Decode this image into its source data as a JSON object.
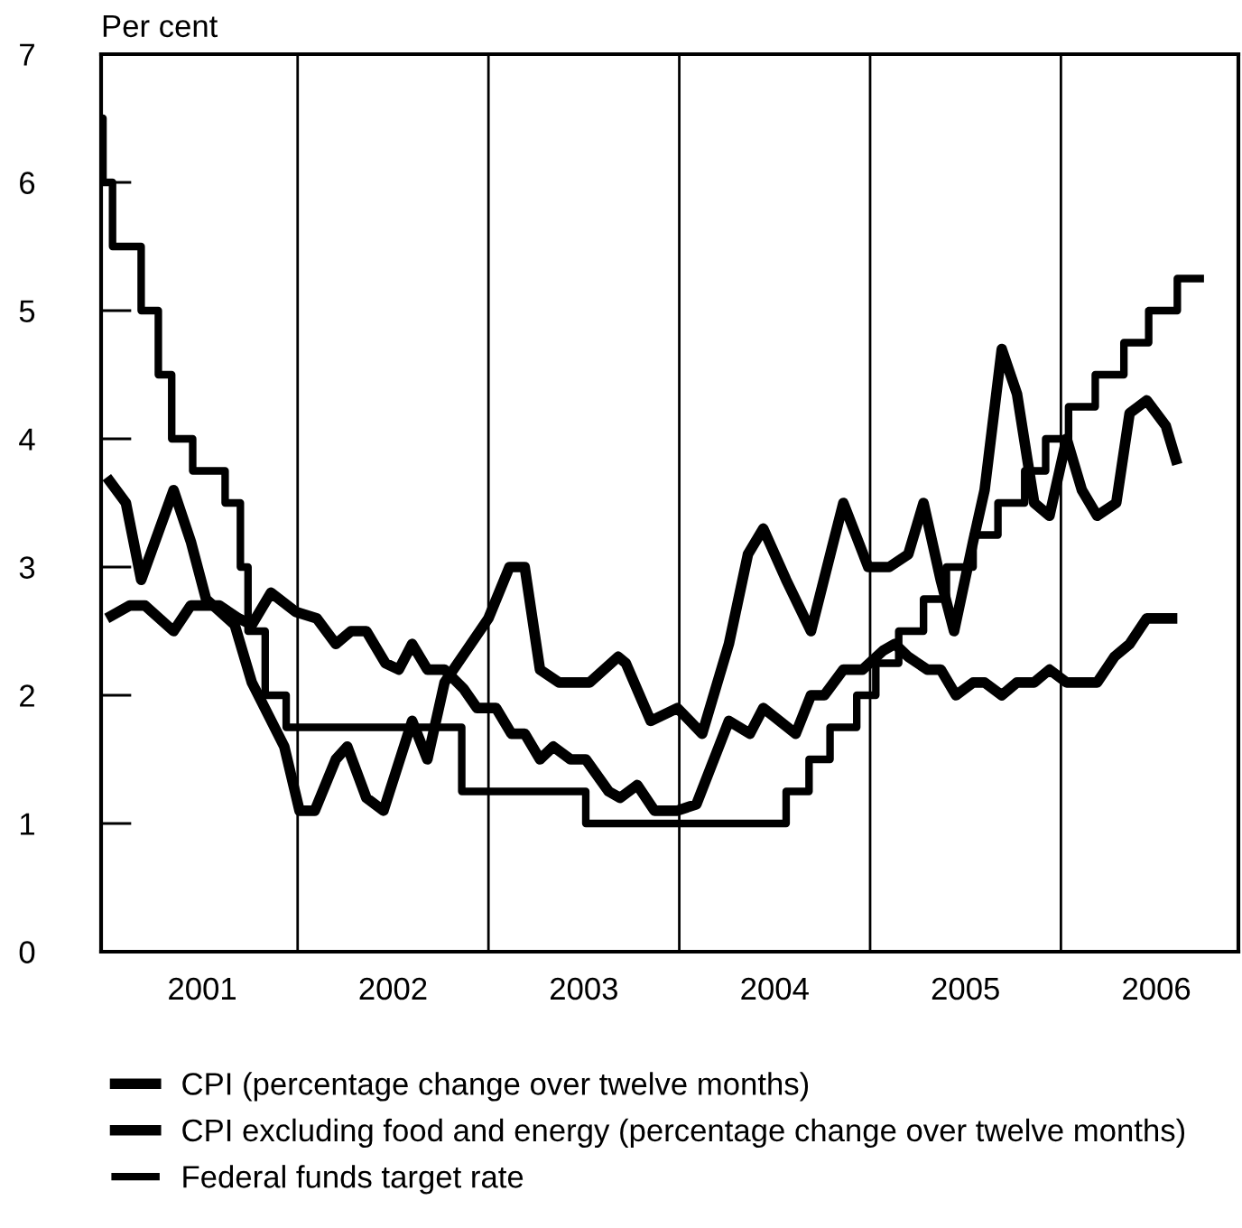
{
  "chart_data": {
    "type": "line",
    "ylabel": "Per cent",
    "xlim": [
      2000.97,
      2006.93
    ],
    "xticks": [
      {
        "value": 2001.5,
        "label": "2001"
      },
      {
        "value": 2002.5,
        "label": "2002"
      },
      {
        "value": 2003.5,
        "label": "2003"
      },
      {
        "value": 2004.5,
        "label": "2004"
      },
      {
        "value": 2005.5,
        "label": "2005"
      },
      {
        "value": 2006.5,
        "label": "2006"
      }
    ],
    "ylim": [
      0,
      7
    ],
    "yticks": [
      0,
      1,
      2,
      3,
      4,
      5,
      6,
      7
    ],
    "ref_lines": [
      {
        "axis": "x",
        "value": 2002,
        "color": "#000000"
      },
      {
        "axis": "x",
        "value": 2003,
        "color": "#000000"
      },
      {
        "axis": "x",
        "value": 2004,
        "color": "#000000"
      },
      {
        "axis": "x",
        "value": 2005,
        "color": "#000000"
      },
      {
        "axis": "x",
        "value": 2006,
        "color": "#000000"
      }
    ],
    "legend": "bottom left",
    "grid": false,
    "line_style": "solid",
    "series": [
      {
        "name": "CPI (percentage change over twelve months)",
        "color": "#000000",
        "x": [
          2001.0,
          2001.1,
          2001.18,
          2001.35,
          2001.44,
          2001.52,
          2001.67,
          2001.76,
          2001.93,
          2002.01,
          2002.09,
          2002.2,
          2002.26,
          2002.36,
          2002.45,
          2002.6,
          2002.68,
          2002.77,
          2003.0,
          2003.11,
          2003.19,
          2003.27,
          2003.37,
          2003.53,
          2003.68,
          2003.72,
          2003.85,
          2003.99,
          2004.12,
          2004.26,
          2004.36,
          2004.44,
          2004.56,
          2004.69,
          2004.8,
          2004.86,
          2004.99,
          2005.1,
          2005.2,
          2005.28,
          2005.37,
          2005.44,
          2005.54,
          2005.6,
          2005.69,
          2005.77,
          2005.86,
          2005.94,
          2006.03,
          2006.11,
          2006.19,
          2006.29,
          2006.36,
          2006.45,
          2006.55,
          2006.61
        ],
        "values": [
          3.7,
          3.5,
          2.9,
          3.6,
          3.2,
          2.75,
          2.55,
          2.1,
          1.6,
          1.1,
          1.1,
          1.5,
          1.6,
          1.2,
          1.1,
          1.8,
          1.5,
          2.1,
          2.6,
          3.0,
          3.0,
          2.2,
          2.1,
          2.1,
          2.3,
          2.25,
          1.8,
          1.9,
          1.7,
          2.4,
          3.1,
          3.3,
          2.9,
          2.5,
          3.15,
          3.5,
          3.0,
          3.0,
          3.1,
          3.5,
          2.9,
          2.5,
          3.2,
          3.6,
          4.7,
          4.35,
          3.5,
          3.4,
          4.0,
          3.6,
          3.4,
          3.5,
          4.2,
          4.3,
          4.1,
          3.8
        ]
      },
      {
        "name": "CPI excluding food and energy (percentage change over twelve months)",
        "color": "#000000",
        "x": [
          2001.0,
          2001.12,
          2001.2,
          2001.35,
          2001.44,
          2001.59,
          2001.69,
          2001.76,
          2001.86,
          2001.99,
          2002.1,
          2002.2,
          2002.28,
          2002.36,
          2002.46,
          2002.53,
          2002.6,
          2002.68,
          2002.77,
          2002.87,
          2002.94,
          2003.04,
          2003.12,
          2003.19,
          2003.27,
          2003.34,
          2003.43,
          2003.51,
          2003.63,
          2003.69,
          2003.78,
          2003.87,
          2003.99,
          2004.09,
          2004.26,
          2004.37,
          2004.44,
          2004.61,
          2004.69,
          2004.76,
          2004.86,
          2004.96,
          2005.07,
          2005.13,
          2005.2,
          2005.3,
          2005.37,
          2005.45,
          2005.54,
          2005.6,
          2005.69,
          2005.77,
          2005.86,
          2005.94,
          2006.03,
          2006.11,
          2006.19,
          2006.28,
          2006.36,
          2006.45,
          2006.55,
          2006.61
        ],
        "values": [
          2.6,
          2.7,
          2.7,
          2.5,
          2.7,
          2.7,
          2.6,
          2.55,
          2.8,
          2.65,
          2.6,
          2.4,
          2.5,
          2.5,
          2.25,
          2.2,
          2.4,
          2.2,
          2.2,
          2.05,
          1.9,
          1.9,
          1.7,
          1.7,
          1.5,
          1.6,
          1.5,
          1.5,
          1.25,
          1.2,
          1.3,
          1.1,
          1.1,
          1.15,
          1.8,
          1.7,
          1.9,
          1.7,
          2.0,
          2.0,
          2.2,
          2.2,
          2.35,
          2.4,
          2.3,
          2.2,
          2.2,
          2.0,
          2.1,
          2.1,
          2.0,
          2.1,
          2.1,
          2.2,
          2.1,
          2.1,
          2.1,
          2.3,
          2.4,
          2.6,
          2.6,
          2.6
        ]
      },
      {
        "name": "Federal funds target rate",
        "color": "#000000",
        "type": "step",
        "x": [
          2000.97,
          2000.98,
          2001.03,
          2001.18,
          2001.27,
          2001.34,
          2001.45,
          2001.62,
          2001.7,
          2001.74,
          2001.83,
          2001.94,
          2002.86,
          2003.51,
          2004.56,
          2004.68,
          2004.79,
          2004.93,
          2005.03,
          2005.15,
          2005.28,
          2005.4,
          2005.54,
          2005.67,
          2005.81,
          2005.92,
          2006.04,
          2006.18,
          2006.33,
          2006.46,
          2006.61,
          2006.73
        ],
        "values": [
          6.5,
          6.0,
          5.5,
          5.0,
          4.5,
          4.0,
          3.75,
          3.5,
          3.0,
          2.5,
          2.0,
          1.75,
          1.25,
          1.0,
          1.25,
          1.5,
          1.75,
          2.0,
          2.25,
          2.5,
          2.75,
          3.0,
          3.25,
          3.5,
          3.75,
          4.0,
          4.25,
          4.5,
          4.75,
          5.0,
          5.25,
          5.25
        ]
      }
    ]
  }
}
